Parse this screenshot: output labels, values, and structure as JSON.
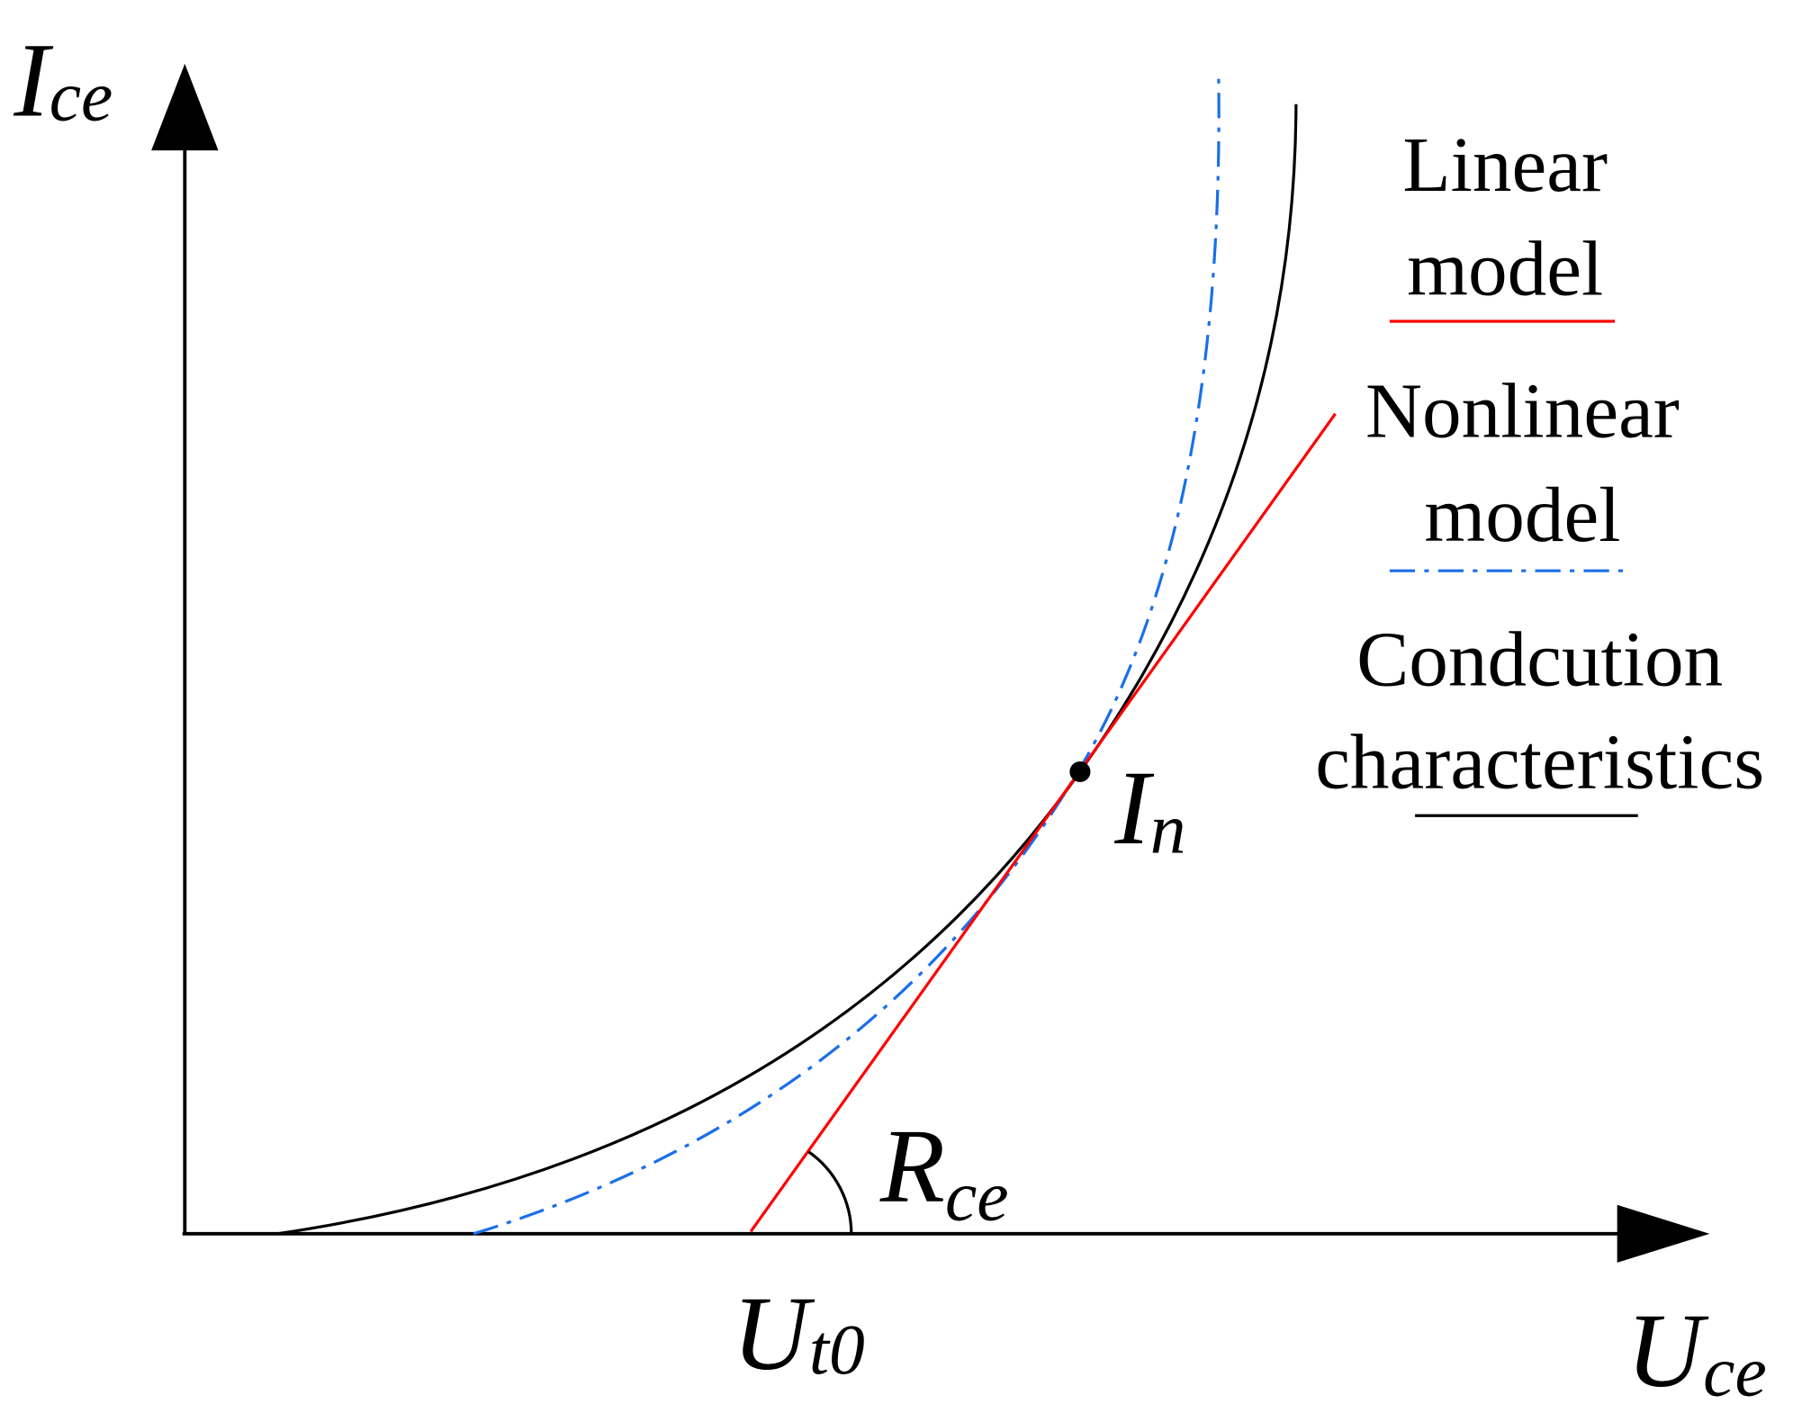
{
  "axes": {
    "y_label": {
      "main": "I",
      "sub": "ce"
    },
    "x_label": {
      "main": "U",
      "sub": "ce"
    }
  },
  "annotations": {
    "threshold": {
      "main": "U",
      "sub": "t0"
    },
    "resistance": {
      "main": "R",
      "sub": "ce"
    },
    "rated_point": {
      "main": "I",
      "sub": "n"
    }
  },
  "legend": [
    {
      "lines": [
        "Linear",
        "model"
      ]
    },
    {
      "lines": [
        "Nonlinear",
        "model"
      ]
    },
    {
      "lines": [
        "Condcution",
        "characteristics"
      ]
    }
  ]
}
